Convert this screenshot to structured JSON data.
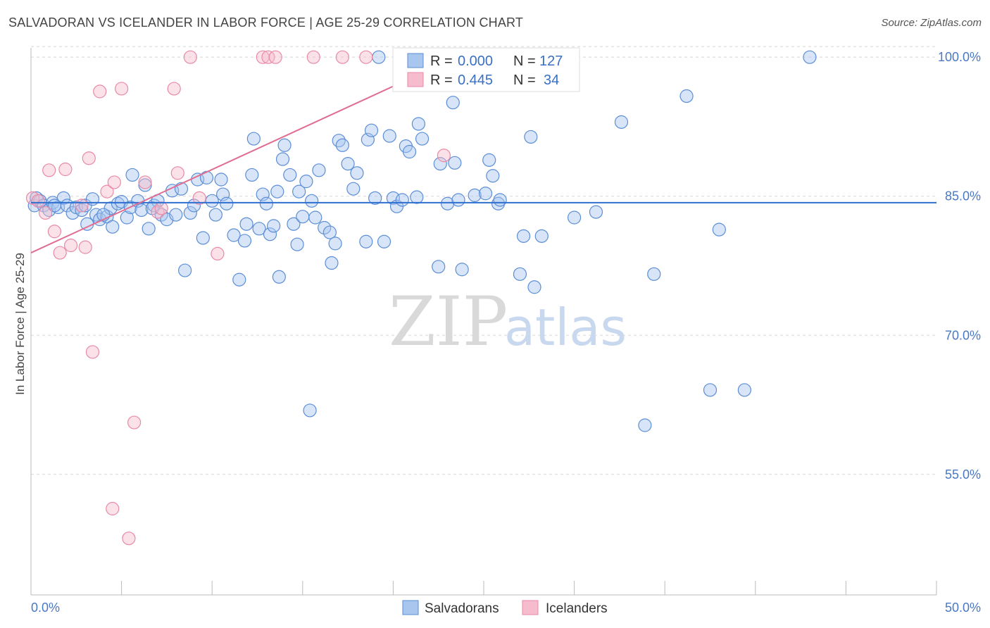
{
  "title": "SALVADORAN VS ICELANDER IN LABOR FORCE | AGE 25-29 CORRELATION CHART",
  "source": "Source: ZipAtlas.com",
  "watermark": {
    "zip": "ZIP",
    "atlas": "atlas"
  },
  "colors": {
    "blue_fill": "#a9c6ef",
    "blue_stroke": "#5b8ed6",
    "blue_line": "#2f6fcf",
    "pink_fill": "#f6bccd",
    "pink_stroke": "#e88aa8",
    "pink_line": "#e06d92",
    "axis_text": "#4a78c4",
    "grid": "#d8d8d8"
  },
  "legend": {
    "rows": [
      {
        "r_label": "R =",
        "r_value": "0.000",
        "n_label": "N =",
        "n_value": "127"
      },
      {
        "r_label": "R =",
        "r_value": "0.445",
        "n_label": "N =",
        "n_value": "34"
      }
    ]
  },
  "bottom_legend": [
    "Salvadorans",
    "Icelanders"
  ],
  "chart_data": {
    "type": "scatter",
    "xlabel": "",
    "ylabel": "In Labor Force | Age 25-29",
    "xlim": [
      0,
      50
    ],
    "ylim": [
      42,
      101
    ],
    "x_tick_labels": [
      {
        "value": 0,
        "label": "0.0%"
      },
      {
        "value": 50,
        "label": "50.0%"
      }
    ],
    "y_tick_labels": [
      {
        "value": 100,
        "label": "100.0%"
      },
      {
        "value": 85,
        "label": "85.0%"
      },
      {
        "value": 70,
        "label": "70.0%"
      },
      {
        "value": 55,
        "label": "55.0%"
      }
    ],
    "grid": "horizontal-dashed",
    "legend_position": "top-center",
    "series": [
      {
        "name": "Salvadorans",
        "r": 0.0,
        "n": 127,
        "trend": [
          [
            0,
            84.3
          ],
          [
            50,
            84.3
          ]
        ],
        "points": [
          [
            0.2,
            84.0
          ],
          [
            0.3,
            84.8
          ],
          [
            0.5,
            84.5
          ],
          [
            0.7,
            84.0
          ],
          [
            1.0,
            83.5
          ],
          [
            1.2,
            84.3
          ],
          [
            1.5,
            83.8
          ],
          [
            1.8,
            84.8
          ],
          [
            2.0,
            84.0
          ],
          [
            2.3,
            83.2
          ],
          [
            2.5,
            83.8
          ],
          [
            2.8,
            83.5
          ],
          [
            3.0,
            84.0
          ],
          [
            3.4,
            84.7
          ],
          [
            3.6,
            83.0
          ],
          [
            3.8,
            82.5
          ],
          [
            4.2,
            82.8
          ],
          [
            4.4,
            83.7
          ],
          [
            4.5,
            81.7
          ],
          [
            4.8,
            84.2
          ],
          [
            5.0,
            84.4
          ],
          [
            5.3,
            82.7
          ],
          [
            5.5,
            83.8
          ],
          [
            5.6,
            87.3
          ],
          [
            5.9,
            84.5
          ],
          [
            6.1,
            83.5
          ],
          [
            6.3,
            86.2
          ],
          [
            6.5,
            81.5
          ],
          [
            6.8,
            84.0
          ],
          [
            7.0,
            84.5
          ],
          [
            7.2,
            83.0
          ],
          [
            7.8,
            85.6
          ],
          [
            7.5,
            82.5
          ],
          [
            8.0,
            83.0
          ],
          [
            8.3,
            85.8
          ],
          [
            8.5,
            77.0
          ],
          [
            8.8,
            83.2
          ],
          [
            9.2,
            86.8
          ],
          [
            9.5,
            80.5
          ],
          [
            9.7,
            87.0
          ],
          [
            10.0,
            84.5
          ],
          [
            10.2,
            83.0
          ],
          [
            10.5,
            86.8
          ],
          [
            10.6,
            85.2
          ],
          [
            10.8,
            84.2
          ],
          [
            11.2,
            80.8
          ],
          [
            11.5,
            76.0
          ],
          [
            11.8,
            80.2
          ],
          [
            11.9,
            82.0
          ],
          [
            12.2,
            87.3
          ],
          [
            12.3,
            91.2
          ],
          [
            12.6,
            81.5
          ],
          [
            12.8,
            85.2
          ],
          [
            13.0,
            84.2
          ],
          [
            13.2,
            80.9
          ],
          [
            13.4,
            81.8
          ],
          [
            13.6,
            85.5
          ],
          [
            13.7,
            76.3
          ],
          [
            13.9,
            89.0
          ],
          [
            14.0,
            90.5
          ],
          [
            14.3,
            87.3
          ],
          [
            14.5,
            82.0
          ],
          [
            14.7,
            79.8
          ],
          [
            14.8,
            85.5
          ],
          [
            15.0,
            82.8
          ],
          [
            15.2,
            86.6
          ],
          [
            15.4,
            61.9
          ],
          [
            15.7,
            82.7
          ],
          [
            15.9,
            87.8
          ],
          [
            16.2,
            81.6
          ],
          [
            16.5,
            81.1
          ],
          [
            16.6,
            77.8
          ],
          [
            16.8,
            79.9
          ],
          [
            17.0,
            91.0
          ],
          [
            17.2,
            90.5
          ],
          [
            17.5,
            88.5
          ],
          [
            17.8,
            85.8
          ],
          [
            18.0,
            87.5
          ],
          [
            18.5,
            80.1
          ],
          [
            18.6,
            91.1
          ],
          [
            18.8,
            92.1
          ],
          [
            19.0,
            84.8
          ],
          [
            19.2,
            100.0
          ],
          [
            19.5,
            80.1
          ],
          [
            19.8,
            91.5
          ],
          [
            20.0,
            84.8
          ],
          [
            20.2,
            83.9
          ],
          [
            20.5,
            84.6
          ],
          [
            20.7,
            90.4
          ],
          [
            20.9,
            89.8
          ],
          [
            21.3,
            84.9
          ],
          [
            21.4,
            92.8
          ],
          [
            21.6,
            91.2
          ],
          [
            22.5,
            77.4
          ],
          [
            22.6,
            88.5
          ],
          [
            23.0,
            84.2
          ],
          [
            23.3,
            95.1
          ],
          [
            23.4,
            88.6
          ],
          [
            23.6,
            84.6
          ],
          [
            23.8,
            77.1
          ],
          [
            24.5,
            85.1
          ],
          [
            25.1,
            85.3
          ],
          [
            25.3,
            88.9
          ],
          [
            25.5,
            87.2
          ],
          [
            25.8,
            84.2
          ],
          [
            25.9,
            84.6
          ],
          [
            27.0,
            76.6
          ],
          [
            27.2,
            80.7
          ],
          [
            27.6,
            91.4
          ],
          [
            27.8,
            75.2
          ],
          [
            28.2,
            80.7
          ],
          [
            30.0,
            82.7
          ],
          [
            31.2,
            83.3
          ],
          [
            32.6,
            93.0
          ],
          [
            34.4,
            76.6
          ],
          [
            33.9,
            60.3
          ],
          [
            36.2,
            95.8
          ],
          [
            37.5,
            64.1
          ],
          [
            38.0,
            81.4
          ],
          [
            39.4,
            64.1
          ],
          [
            43.0,
            100.0
          ],
          [
            1.3,
            84.0
          ],
          [
            3.1,
            82.0
          ],
          [
            4.0,
            83.0
          ],
          [
            6.7,
            83.7
          ],
          [
            9.0,
            84.0
          ],
          [
            15.5,
            84.5
          ]
        ]
      },
      {
        "name": "Icelanders",
        "r": 0.445,
        "n": 34,
        "trend": [
          [
            0,
            78.9
          ],
          [
            23.5,
            100.0
          ]
        ],
        "points": [
          [
            0.1,
            84.8
          ],
          [
            0.4,
            84.5
          ],
          [
            0.8,
            83.2
          ],
          [
            1.0,
            87.8
          ],
          [
            1.3,
            81.2
          ],
          [
            1.6,
            78.9
          ],
          [
            1.9,
            87.9
          ],
          [
            2.2,
            79.7
          ],
          [
            2.8,
            84.0
          ],
          [
            3.0,
            79.5
          ],
          [
            3.2,
            89.1
          ],
          [
            3.4,
            68.2
          ],
          [
            3.8,
            96.3
          ],
          [
            4.2,
            85.5
          ],
          [
            4.5,
            51.3
          ],
          [
            4.6,
            86.5
          ],
          [
            5.0,
            96.6
          ],
          [
            5.4,
            48.1
          ],
          [
            5.7,
            60.6
          ],
          [
            6.3,
            86.5
          ],
          [
            7.0,
            83.3
          ],
          [
            7.2,
            83.7
          ],
          [
            7.9,
            96.6
          ],
          [
            8.1,
            87.5
          ],
          [
            8.8,
            100.0
          ],
          [
            9.3,
            84.8
          ],
          [
            10.3,
            78.8
          ],
          [
            12.8,
            100.0
          ],
          [
            13.1,
            100.0
          ],
          [
            13.5,
            100.0
          ],
          [
            15.6,
            100.0
          ],
          [
            17.2,
            100.0
          ],
          [
            18.5,
            100.0
          ],
          [
            22.8,
            89.4
          ]
        ]
      }
    ]
  }
}
